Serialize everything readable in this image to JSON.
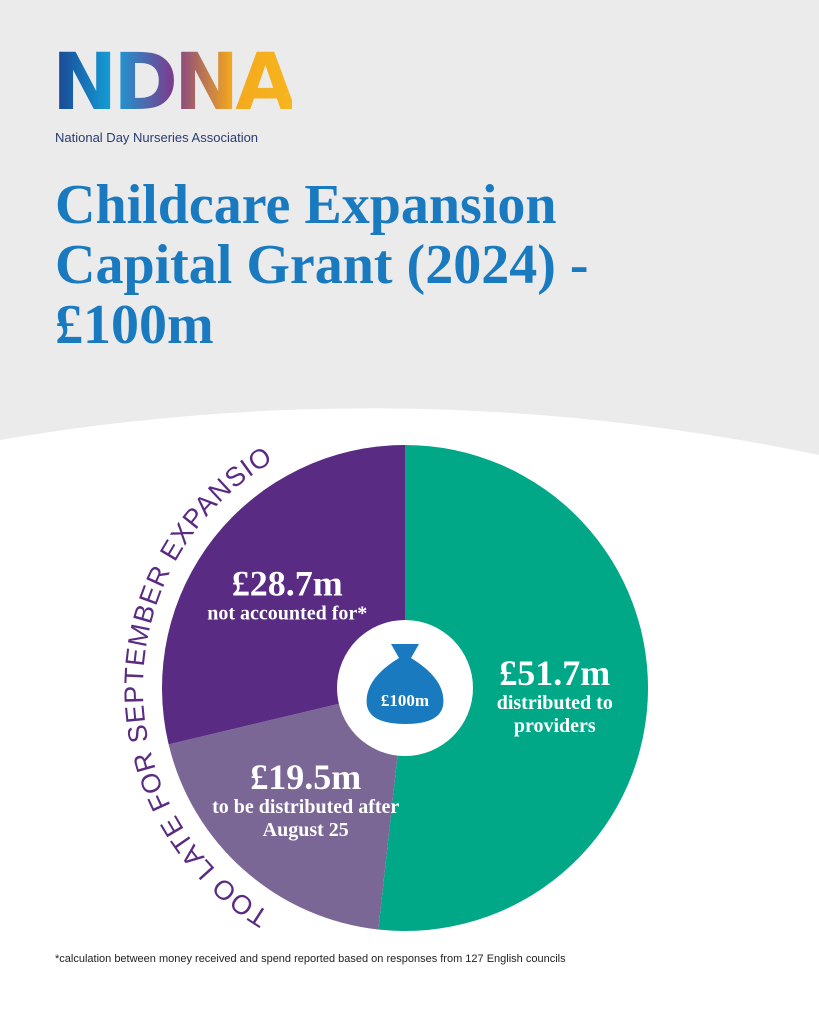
{
  "logo": {
    "mark": "NDNA",
    "name": "National Day Nurseries Association"
  },
  "chart_data": {
    "type": "pie",
    "title": "Childcare Expansion Capital Grant (2024) - £100m",
    "categories": [
      "distributed to providers",
      "to be distributed after August 25",
      "not accounted for*"
    ],
    "values": [
      51.7,
      19.5,
      28.7
    ],
    "value_labels": [
      "£51.7m",
      "£19.5m",
      "£28.7m"
    ],
    "colors": [
      "#00a887",
      "#7b6795",
      "#5a2b82"
    ],
    "center_label": "£100m",
    "arc_annotation": "TOO LATE FOR SEPTEMBER EXPANSION",
    "footnote": "*calculation between money received and spend reported based on responses from 127 English councils"
  }
}
